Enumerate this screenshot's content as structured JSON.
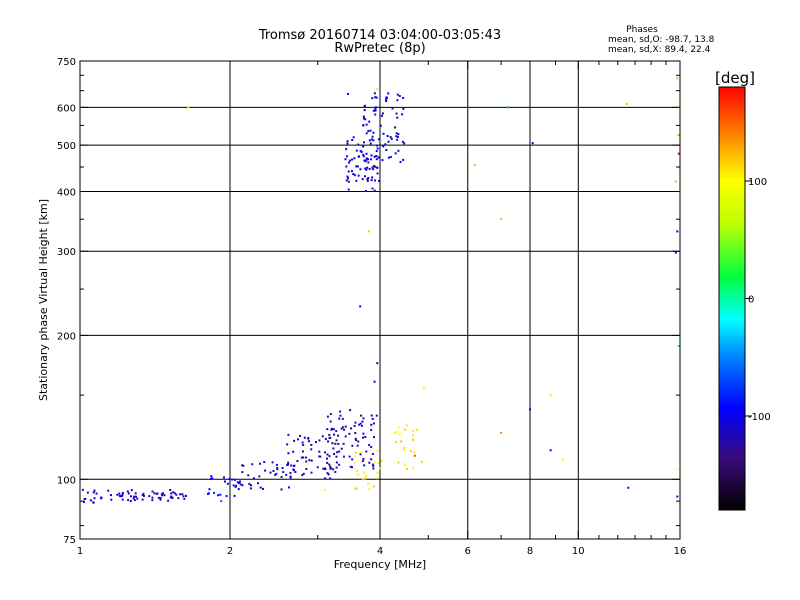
{
  "chart_data": {
    "type": "scatter",
    "title": "Tromsø 20160714 03:04:00-03:05:43",
    "subtitle": "RwPretec (8p)",
    "xlabel": "Frequency [MHz]",
    "ylabel": "Stationary phase Virtual Height [km]",
    "x_scale": "log",
    "y_scale": "log",
    "xlim": [
      1,
      16
    ],
    "ylim": [
      75,
      750
    ],
    "x_ticks": [
      {
        "value": 1,
        "label": "1"
      },
      {
        "value": 2,
        "label": "2"
      },
      {
        "value": 4,
        "label": "4"
      },
      {
        "value": 6,
        "label": "6"
      },
      {
        "value": 8,
        "label": "8"
      },
      {
        "value": 10,
        "label": "10"
      },
      {
        "value": 16,
        "label": "16"
      }
    ],
    "y_ticks": [
      {
        "value": 75,
        "label": "75"
      },
      {
        "value": 100,
        "label": "100"
      },
      {
        "value": 200,
        "label": "200"
      },
      {
        "value": 300,
        "label": "300"
      },
      {
        "value": 400,
        "label": "400"
      },
      {
        "value": 500,
        "label": "500"
      },
      {
        "value": 600,
        "label": "600"
      },
      {
        "value": 750,
        "label": "750"
      }
    ],
    "grid_x": [
      2,
      4,
      6,
      8,
      10
    ],
    "grid_y": [
      100,
      200,
      300,
      400,
      500,
      600
    ],
    "stats": {
      "heading": "Phases",
      "line_o": "mean, sd,O: -98.7, 13.8",
      "line_x": "mean, sd,X:  89.4, 22.4"
    },
    "colorbar": {
      "label": "[deg]",
      "range": [
        -180,
        180
      ],
      "ticks": [
        {
          "value": 100,
          "label": "100"
        },
        {
          "value": 0,
          "label": "0"
        },
        {
          "value": -100,
          "label": "-100"
        }
      ]
    },
    "clusters": [
      {
        "x_range": [
          1.0,
          1.08
        ],
        "y_range": [
          88,
          96
        ],
        "count": 12,
        "phase": -110
      },
      {
        "x_range": [
          1.1,
          1.65
        ],
        "y_range": [
          90,
          95
        ],
        "count": 60,
        "phase": -112
      },
      {
        "x_range": [
          1.75,
          2.05
        ],
        "y_range": [
          92,
          102
        ],
        "count": 18,
        "phase": -100
      },
      {
        "x_range": [
          2.05,
          2.7
        ],
        "y_range": [
          95,
          110
        ],
        "count": 45,
        "phase": -108
      },
      {
        "x_range": [
          2.6,
          3.3
        ],
        "y_range": [
          100,
          125
        ],
        "count": 60,
        "phase": -115
      },
      {
        "x_range": [
          3.1,
          3.95
        ],
        "y_range": [
          105,
          140
        ],
        "count": 80,
        "phase": -118
      },
      {
        "x_range": [
          3.4,
          4.0
        ],
        "y_range": [
          400,
          520
        ],
        "count": 75,
        "phase": -108
      },
      {
        "x_range": [
          3.7,
          4.5
        ],
        "y_range": [
          460,
          650
        ],
        "count": 70,
        "phase": -105
      },
      {
        "x_range": [
          3.5,
          4.05
        ],
        "y_range": [
          95,
          115
        ],
        "count": 22,
        "phase": 105
      },
      {
        "x_range": [
          4.25,
          4.85
        ],
        "y_range": [
          105,
          130
        ],
        "count": 22,
        "phase": 110
      }
    ],
    "points": [
      {
        "x": 3.65,
        "y": 230,
        "phase": -105
      },
      {
        "x": 3.95,
        "y": 175,
        "phase": -108
      },
      {
        "x": 3.9,
        "y": 160,
        "phase": -106
      },
      {
        "x": 3.8,
        "y": 330,
        "phase": 120
      },
      {
        "x": 3.95,
        "y": 655,
        "phase": 110
      },
      {
        "x": 3.45,
        "y": 640,
        "phase": -108
      },
      {
        "x": 4.9,
        "y": 155,
        "phase": 105
      },
      {
        "x": 4.7,
        "y": 112,
        "phase": 160
      },
      {
        "x": 3.1,
        "y": 95,
        "phase": 100
      },
      {
        "x": 6.2,
        "y": 455,
        "phase": 125
      },
      {
        "x": 7.0,
        "y": 350,
        "phase": 122
      },
      {
        "x": 7.0,
        "y": 125,
        "phase": 135
      },
      {
        "x": 7.2,
        "y": 600,
        "phase": -40
      },
      {
        "x": 8.1,
        "y": 505,
        "phase": -105
      },
      {
        "x": 8.0,
        "y": 140,
        "phase": -100
      },
      {
        "x": 8.8,
        "y": 150,
        "phase": 110
      },
      {
        "x": 8.8,
        "y": 115,
        "phase": -108
      },
      {
        "x": 9.3,
        "y": 110,
        "phase": 105
      },
      {
        "x": 12.5,
        "y": 610,
        "phase": 125
      },
      {
        "x": 12.6,
        "y": 96,
        "phase": -110
      },
      {
        "x": 1.65,
        "y": 600,
        "phase": 95
      },
      {
        "x": 1.92,
        "y": 90,
        "phase": -60
      },
      {
        "x": 15.8,
        "y": 690,
        "phase": 40
      },
      {
        "x": 15.8,
        "y": 600,
        "phase": 60
      },
      {
        "x": 15.9,
        "y": 525,
        "phase": 130
      },
      {
        "x": 15.9,
        "y": 480,
        "phase": 175
      },
      {
        "x": 15.7,
        "y": 420,
        "phase": 45
      },
      {
        "x": 15.8,
        "y": 330,
        "phase": -100
      },
      {
        "x": 15.7,
        "y": 298,
        "phase": -105
      },
      {
        "x": 15.9,
        "y": 190,
        "phase": 20
      },
      {
        "x": 15.8,
        "y": 105,
        "phase": 100
      },
      {
        "x": 15.8,
        "y": 92,
        "phase": -105
      }
    ]
  }
}
